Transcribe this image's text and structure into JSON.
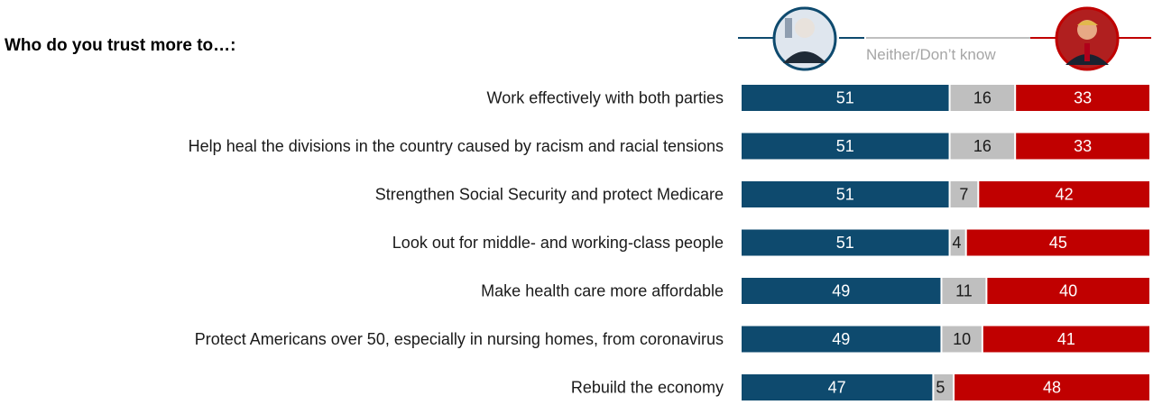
{
  "chart_data": {
    "type": "bar",
    "stacked": true,
    "orientation": "horizontal",
    "title": "Who do you trust more to…:",
    "legend_text": "Neither/Don’t know",
    "categories": [
      "Work effectively with both parties",
      "Help heal the divisions in the country caused by racism and racial tensions",
      "Strengthen Social Security and protect Medicare",
      "Look out for middle- and working-class people",
      "Make health care more affordable",
      "Protect Americans over 50, especially in nursing homes, from coronavirus",
      "Rebuild the economy"
    ],
    "series": [
      {
        "values": [
          51,
          51,
          51,
          51,
          49,
          49,
          47
        ],
        "color": "#0e4a6e"
      },
      {
        "name": "Neither/Don’t know",
        "values": [
          16,
          16,
          7,
          4,
          11,
          10,
          5
        ],
        "color": "#bfbfbf"
      },
      {
        "values": [
          33,
          33,
          42,
          45,
          40,
          41,
          48
        ],
        "color": "#c00000"
      }
    ],
    "xlim": [
      0,
      100
    ],
    "grid": false,
    "legend_placement": "top-right"
  }
}
